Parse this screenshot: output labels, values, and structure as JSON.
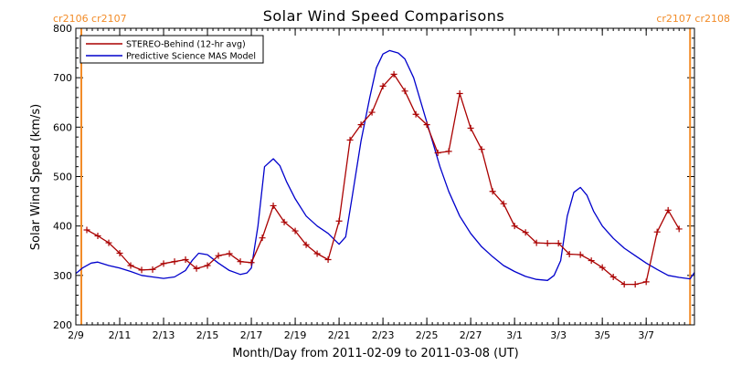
{
  "chart_data": {
    "type": "line",
    "title": "Solar Wind Speed Comparisons",
    "xlabel": "Month/Day from 2011-02-09 to 2011-03-08 (UT)",
    "ylabel": "Solar Wind Speed (km/s)",
    "ylim": [
      200,
      800
    ],
    "xlim_days": [
      0,
      28.2
    ],
    "x_ticks": [
      {
        "day": 0,
        "label": "2/9"
      },
      {
        "day": 2,
        "label": "2/11"
      },
      {
        "day": 4,
        "label": "2/13"
      },
      {
        "day": 6,
        "label": "2/15"
      },
      {
        "day": 8,
        "label": "2/17"
      },
      {
        "day": 10,
        "label": "2/19"
      },
      {
        "day": 12,
        "label": "2/21"
      },
      {
        "day": 14,
        "label": "2/23"
      },
      {
        "day": 16,
        "label": "2/25"
      },
      {
        "day": 18,
        "label": "2/27"
      },
      {
        "day": 20,
        "label": "3/1"
      },
      {
        "day": 22,
        "label": "3/3"
      },
      {
        "day": 24,
        "label": "3/5"
      },
      {
        "day": 26,
        "label": "3/7"
      }
    ],
    "y_ticks": [
      200,
      300,
      400,
      500,
      600,
      700,
      800
    ],
    "carrington_rotations": {
      "left_label": "cr2106 cr2107",
      "right_label": "cr2107 cr2108",
      "left_day": 0.25,
      "right_day": 28.0,
      "color": "#f28c28"
    },
    "legend_position": "top-left",
    "series": [
      {
        "name": "STEREO-Behind (12-hr avg)",
        "color": "#aa0000",
        "marker": "plus",
        "points": [
          [
            0.5,
            392
          ],
          [
            1.0,
            380
          ],
          [
            1.5,
            366
          ],
          [
            2.0,
            345
          ],
          [
            2.5,
            320
          ],
          [
            3.0,
            311
          ],
          [
            3.5,
            312
          ],
          [
            4.0,
            324
          ],
          [
            4.5,
            328
          ],
          [
            5.0,
            332
          ],
          [
            5.5,
            314
          ],
          [
            6.0,
            320
          ],
          [
            6.5,
            340
          ],
          [
            7.0,
            344
          ],
          [
            7.5,
            328
          ],
          [
            8.0,
            326
          ],
          [
            8.5,
            376
          ],
          [
            9.0,
            441
          ],
          [
            9.5,
            408
          ],
          [
            10.0,
            390
          ],
          [
            10.5,
            362
          ],
          [
            11.0,
            344
          ],
          [
            11.5,
            332
          ],
          [
            12.0,
            410
          ],
          [
            12.5,
            574
          ],
          [
            13.0,
            605
          ],
          [
            13.5,
            630
          ],
          [
            14.0,
            683
          ],
          [
            14.5,
            707
          ],
          [
            15.0,
            673
          ],
          [
            15.5,
            626
          ],
          [
            16.0,
            605
          ],
          [
            16.5,
            548
          ],
          [
            17.0,
            551
          ],
          [
            17.5,
            668
          ],
          [
            18.0,
            598
          ],
          [
            18.5,
            555
          ],
          [
            19.0,
            470
          ],
          [
            19.5,
            445
          ],
          [
            20.0,
            400
          ],
          [
            20.5,
            387
          ],
          [
            21.0,
            366
          ],
          [
            21.5,
            365
          ],
          [
            22.0,
            365
          ],
          [
            22.5,
            343
          ],
          [
            23.0,
            342
          ],
          [
            23.5,
            330
          ],
          [
            24.0,
            316
          ],
          [
            24.5,
            297
          ],
          [
            25.0,
            282
          ],
          [
            25.5,
            282
          ],
          [
            26.0,
            287
          ],
          [
            26.5,
            388
          ],
          [
            27.0,
            432
          ],
          [
            27.5,
            394
          ]
        ]
      },
      {
        "name": "Predictive Science MAS Model",
        "color": "#0000cc",
        "marker": "none",
        "points": [
          [
            0,
            304
          ],
          [
            0.3,
            315
          ],
          [
            0.7,
            325
          ],
          [
            1.0,
            327
          ],
          [
            1.5,
            320
          ],
          [
            2.0,
            315
          ],
          [
            2.5,
            308
          ],
          [
            3.0,
            300
          ],
          [
            3.5,
            297
          ],
          [
            4.0,
            294
          ],
          [
            4.5,
            297
          ],
          [
            5.0,
            310
          ],
          [
            5.3,
            330
          ],
          [
            5.6,
            345
          ],
          [
            6.0,
            342
          ],
          [
            6.5,
            325
          ],
          [
            7.0,
            310
          ],
          [
            7.5,
            302
          ],
          [
            7.8,
            305
          ],
          [
            8.0,
            315
          ],
          [
            8.3,
            400
          ],
          [
            8.6,
            520
          ],
          [
            9.0,
            536
          ],
          [
            9.3,
            522
          ],
          [
            9.6,
            490
          ],
          [
            10.0,
            455
          ],
          [
            10.5,
            420
          ],
          [
            11.0,
            400
          ],
          [
            11.5,
            385
          ],
          [
            12.0,
            363
          ],
          [
            12.3,
            378
          ],
          [
            12.6,
            460
          ],
          [
            13.0,
            572
          ],
          [
            13.4,
            660
          ],
          [
            13.7,
            720
          ],
          [
            14.0,
            748
          ],
          [
            14.3,
            755
          ],
          [
            14.7,
            750
          ],
          [
            15.0,
            738
          ],
          [
            15.4,
            700
          ],
          [
            15.8,
            640
          ],
          [
            16.2,
            580
          ],
          [
            16.6,
            520
          ],
          [
            17.0,
            470
          ],
          [
            17.5,
            420
          ],
          [
            18.0,
            385
          ],
          [
            18.5,
            358
          ],
          [
            19.0,
            338
          ],
          [
            19.5,
            320
          ],
          [
            20.0,
            308
          ],
          [
            20.5,
            298
          ],
          [
            21.0,
            292
          ],
          [
            21.5,
            290
          ],
          [
            21.8,
            300
          ],
          [
            22.1,
            330
          ],
          [
            22.4,
            420
          ],
          [
            22.7,
            468
          ],
          [
            23.0,
            478
          ],
          [
            23.3,
            462
          ],
          [
            23.6,
            430
          ],
          [
            24.0,
            400
          ],
          [
            24.5,
            375
          ],
          [
            25.0,
            355
          ],
          [
            25.5,
            340
          ],
          [
            26.0,
            325
          ],
          [
            26.5,
            312
          ],
          [
            27.0,
            300
          ],
          [
            27.5,
            296
          ],
          [
            28.0,
            293
          ],
          [
            28.2,
            306
          ]
        ]
      }
    ]
  }
}
